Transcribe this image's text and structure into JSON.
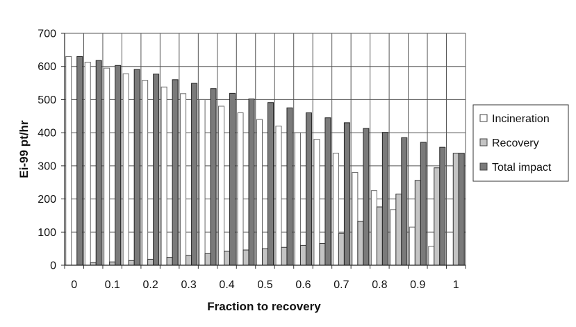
{
  "chart_data": {
    "type": "bar",
    "xlabel": "Fraction to recovery",
    "ylabel": "Ei-99 pt/hr",
    "ylim": [
      0,
      700
    ],
    "yticks": [
      "0",
      "100",
      "200",
      "300",
      "400",
      "500",
      "600",
      "700"
    ],
    "xtick_labels": [
      "0",
      "0.1",
      "0.2",
      "0.3",
      "0.4",
      "0.5",
      "0.6",
      "0.7",
      "0.8",
      "0.9",
      "1"
    ],
    "categories": [
      "0",
      "0.05",
      "0.1",
      "0.15",
      "0.2",
      "0.25",
      "0.3",
      "0.35",
      "0.4",
      "0.45",
      "0.5",
      "0.55",
      "0.6",
      "0.65",
      "0.7",
      "0.75",
      "0.8",
      "0.85",
      "0.9",
      "0.95",
      "1"
    ],
    "grid": "horizontal and vertical",
    "legend_position": "right",
    "series": [
      {
        "name": "Incineration",
        "color": "#ffffff",
        "values": [
          630,
          613,
          595,
          578,
          558,
          538,
          518,
          500,
          480,
          460,
          440,
          420,
          400,
          380,
          338,
          280,
          225,
          168,
          115,
          57,
          0
        ]
      },
      {
        "name": "Recovery",
        "color": "#c4c4c4",
        "values": [
          0,
          8,
          10,
          14,
          18,
          24,
          30,
          35,
          42,
          46,
          50,
          54,
          60,
          66,
          96,
          133,
          176,
          215,
          256,
          294,
          338
        ]
      },
      {
        "name": "Total impact",
        "color": "#7a7a7a",
        "values": [
          630,
          618,
          603,
          591,
          577,
          560,
          549,
          533,
          519,
          502,
          491,
          475,
          460,
          445,
          430,
          413,
          401,
          385,
          371,
          356,
          338
        ]
      }
    ]
  }
}
